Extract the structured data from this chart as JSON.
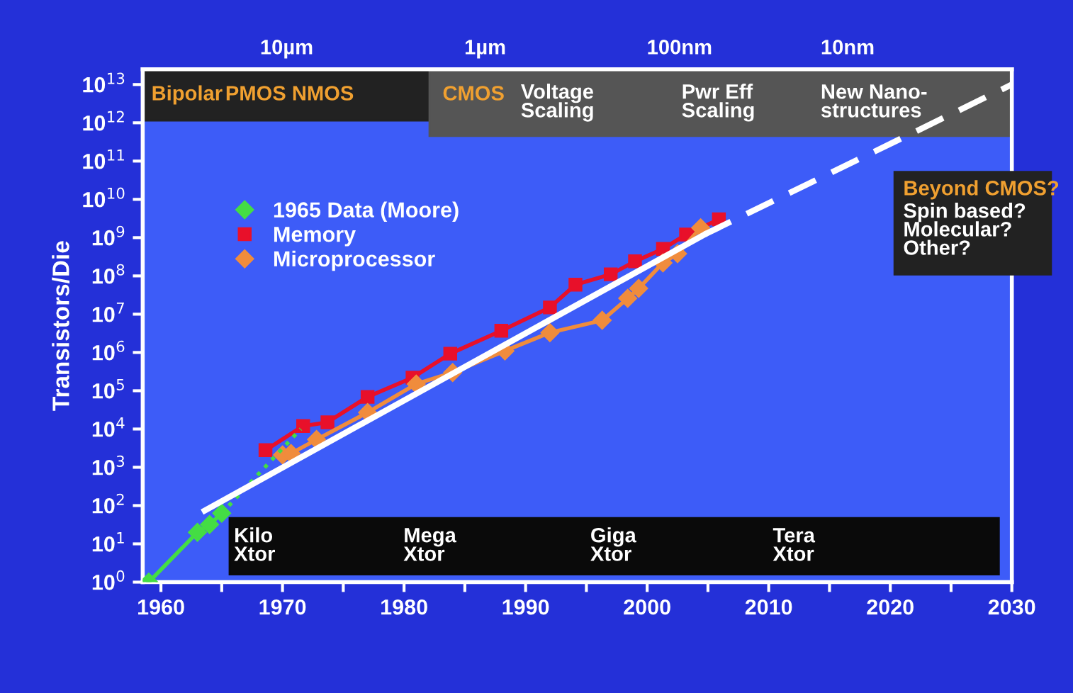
{
  "chart_data": {
    "type": "line",
    "ylabel": "Transistors/Die",
    "xlim": [
      1958.5,
      2030
    ],
    "xticks": [
      1960,
      {
        "value": 1965,
        "label": null
      },
      1970,
      {
        "value": 1975,
        "label": null
      },
      1980,
      {
        "value": 1985,
        "label": null
      },
      1990,
      {
        "value": 1995,
        "label": null
      },
      2000,
      {
        "value": 2005,
        "label": null
      },
      2010,
      {
        "value": 2015,
        "label": null
      },
      2020,
      {
        "value": 2025,
        "label": null
      },
      2030
    ],
    "log": "y",
    "ylim": [
      1,
      25000000000000
    ],
    "yticks": [
      {
        "value": 1,
        "label": "10$^{0}$"
      },
      {
        "value": 10,
        "label": "10$^{1}$"
      },
      {
        "value": 100,
        "label": "10$^{2}$"
      },
      {
        "value": 1000,
        "label": "10$^{3}$"
      },
      {
        "value": 10000,
        "label": "10$^{4}$"
      },
      {
        "value": 100000,
        "label": "10$^{5}$"
      },
      {
        "value": 1000000,
        "label": "10$^{6}$"
      },
      {
        "value": 10000000,
        "label": "10$^{7}$"
      },
      {
        "value": 100000000,
        "label": "10$^{8}$"
      },
      {
        "value": 1000000000,
        "label": "10$^{9}$"
      },
      {
        "value": 10000000000,
        "label": "10$^{10}$"
      },
      {
        "value": 100000000000,
        "label": "10$^{11}$"
      },
      {
        "value": 1000000000000,
        "label": "10$^{12}$"
      },
      {
        "value": 10000000000000,
        "label": "10$^{13}$"
      }
    ],
    "grid": false,
    "legend": "top left",
    "series": [
      {
        "name": "1965 Data (Moore)",
        "color": "#44dd44",
        "marker": "diamond",
        "x": [
          1959,
          1963,
          1964,
          1965
        ],
        "values": [
          1,
          20,
          32,
          63
        ]
      },
      {
        "color": "#44dd44",
        "marker": "none",
        "line_style": "dotted",
        "x": [
          1965,
          1971.5
        ],
        "values": [
          63,
          10000
        ]
      },
      {
        "name": "Memory",
        "color": "#e8102a",
        "marker": "square",
        "x": [
          1968.6,
          1971.7,
          1973.7,
          1977,
          1980.7,
          1983.8,
          1988,
          1992,
          1994.1,
          1997,
          1999,
          2001.3,
          2003.2,
          2005.9
        ],
        "values": [
          2800,
          12000,
          15000,
          69000,
          220000,
          930000,
          3700000,
          15000000,
          59000000,
          110000000,
          240000000,
          510000000,
          1200000000,
          3000000000
        ]
      },
      {
        "name": "Microprocessor",
        "color": "#f08c3c",
        "marker": "diamond",
        "x": [
          1970,
          1970.7,
          1972.8,
          1977,
          1981,
          1984,
          1988.3,
          1992,
          1996.3,
          1998.4,
          1999.3,
          2001.3,
          2002.5,
          2004.4
        ],
        "values": [
          2100,
          2300,
          5300,
          27000,
          150000,
          300000,
          1100000,
          3300000,
          6900000,
          26000000,
          47000000,
          220000000,
          380000000,
          1800000000
        ]
      },
      {
        "color": "#ffffff",
        "marker": "none",
        "line_style": "solid",
        "x": [
          1963.6,
          2004.7
        ],
        "values": [
          74,
          1200000000
        ]
      },
      {
        "color": "#ffffff",
        "marker": "none",
        "line_style": "dashed",
        "x": [
          2004.7,
          2030
        ],
        "values": [
          1200000000,
          10000000000000
        ]
      }
    ],
    "annotations": [
      "10µm",
      "1µm",
      "100nm",
      "10nm",
      "Bipolar",
      "PMOS NMOS",
      "CMOS",
      "Voltage\nScaling",
      "Pwr Eff\nScaling",
      "New Nano-\nstructures",
      "Beyond CMOS?",
      "Spin based?\nMolecular?\nOther?",
      "Kilo\nXtor",
      "Mega\nXtor",
      "Giga\nXtor",
      "Tera\nXtor"
    ]
  }
}
